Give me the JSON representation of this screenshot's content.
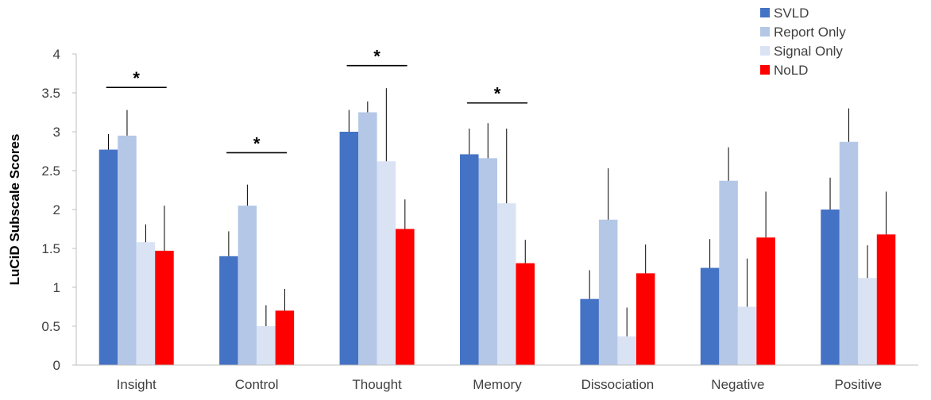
{
  "chart_data": {
    "type": "bar",
    "title": "",
    "xlabel": "",
    "ylabel": "LuCiD Subscale Scores",
    "ylim": [
      0,
      4
    ],
    "yticks": [
      "0",
      "0.5",
      "1",
      "1.5",
      "2",
      "2.5",
      "3",
      "3.5",
      "4"
    ],
    "grid": false,
    "legend_position": "top-right",
    "categories": [
      "Insight",
      "Control",
      "Thought",
      "Memory",
      "Dissociation",
      "Negative",
      "Positive"
    ],
    "series": [
      {
        "name": "SVLD",
        "color": "#4472C4",
        "values": [
          2.77,
          1.4,
          3.0,
          2.71,
          0.85,
          1.25,
          2.0
        ],
        "error": [
          0.2,
          0.32,
          0.28,
          0.33,
          0.37,
          0.37,
          0.41
        ]
      },
      {
        "name": "Report Only",
        "color": "#B4C7E7",
        "values": [
          2.95,
          2.05,
          3.25,
          2.66,
          1.87,
          2.37,
          2.87
        ],
        "error": [
          0.33,
          0.27,
          0.14,
          0.45,
          0.66,
          0.43,
          0.43
        ]
      },
      {
        "name": "Signal Only",
        "color": "#DAE3F3",
        "values": [
          1.58,
          0.5,
          2.62,
          2.08,
          0.37,
          0.75,
          1.12
        ],
        "error": [
          0.23,
          0.27,
          0.94,
          0.96,
          0.37,
          0.62,
          0.42
        ]
      },
      {
        "name": "NoLD",
        "color": "#FF0000",
        "values": [
          1.47,
          0.7,
          1.75,
          1.31,
          1.18,
          1.64,
          1.68
        ],
        "error": [
          0.58,
          0.28,
          0.38,
          0.3,
          0.37,
          0.59,
          0.55
        ]
      }
    ],
    "significance": [
      {
        "category": "Insight",
        "y": 3.57,
        "label": "*"
      },
      {
        "category": "Control",
        "y": 2.73,
        "label": "*"
      },
      {
        "category": "Thought",
        "y": 3.85,
        "label": "*"
      },
      {
        "category": "Memory",
        "y": 3.37,
        "label": "*"
      }
    ]
  }
}
